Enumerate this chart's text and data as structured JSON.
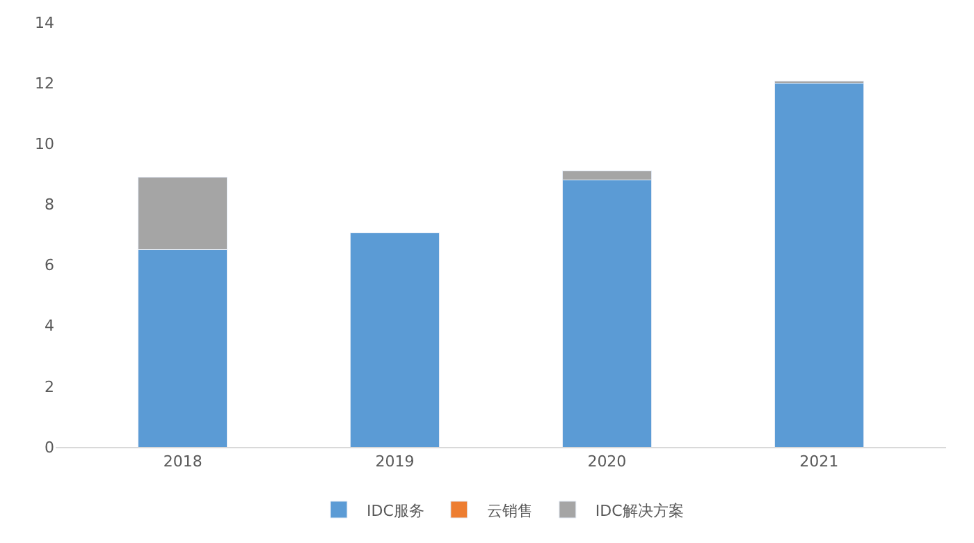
{
  "chart_data": {
    "type": "bar",
    "stacked": true,
    "categories": [
      "2018",
      "2019",
      "2020",
      "2021"
    ],
    "series": [
      {
        "name": "IDC服务",
        "color": "#5b9bd5",
        "values": [
          6.5,
          7.05,
          8.8,
          12.0
        ]
      },
      {
        "name": "云销售",
        "color": "#ed7d31",
        "values": [
          null,
          null,
          null,
          null
        ]
      },
      {
        "name": "IDC解决方案",
        "color": "#a5a5a5",
        "values": [
          2.4,
          null,
          0.3,
          0.05
        ]
      }
    ],
    "ylim": [
      0,
      14
    ],
    "yticks": [
      0,
      2,
      4,
      6,
      8,
      10,
      12,
      14
    ],
    "grid": false,
    "legend": "bottom"
  }
}
